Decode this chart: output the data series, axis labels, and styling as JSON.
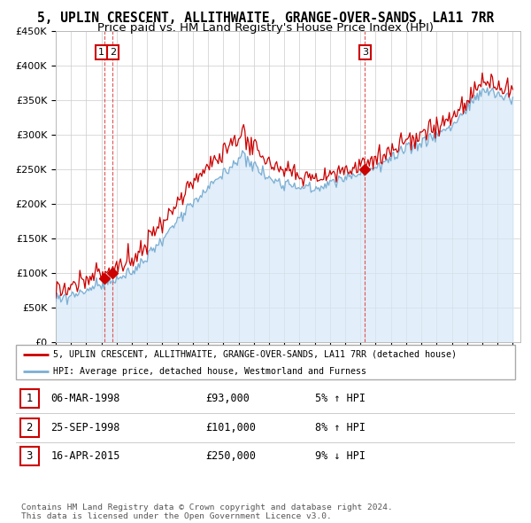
{
  "title": "5, UPLIN CRESCENT, ALLITHWAITE, GRANGE-OVER-SANDS, LA11 7RR",
  "subtitle": "Price paid vs. HM Land Registry's House Price Index (HPI)",
  "ylim": [
    0,
    450000
  ],
  "yticks": [
    0,
    50000,
    100000,
    150000,
    200000,
    250000,
    300000,
    350000,
    400000,
    450000
  ],
  "ytick_labels": [
    "£0",
    "£50K",
    "£100K",
    "£150K",
    "£200K",
    "£250K",
    "£300K",
    "£350K",
    "£400K",
    "£450K"
  ],
  "sale_dates_num": [
    1998.17,
    1998.73,
    2015.29
  ],
  "sale_prices": [
    93000,
    101000,
    250000
  ],
  "sale_labels": [
    "1",
    "2",
    "3"
  ],
  "hpi_line_color": "#7bafd4",
  "hpi_fill_color": "#d6e8f7",
  "price_line_color": "#cc0000",
  "marker_color": "#cc0000",
  "label_box_color": "#cc0000",
  "background_color": "#ffffff",
  "grid_color": "#cccccc",
  "legend_line1": "5, UPLIN CRESCENT, ALLITHWAITE, GRANGE-OVER-SANDS, LA11 7RR (detached house)",
  "legend_line2": "HPI: Average price, detached house, Westmorland and Furness",
  "table_rows": [
    [
      "1",
      "06-MAR-1998",
      "£93,000",
      "5% ↑ HPI"
    ],
    [
      "2",
      "25-SEP-1998",
      "£101,000",
      "8% ↑ HPI"
    ],
    [
      "3",
      "16-APR-2015",
      "£250,000",
      "9% ↓ HPI"
    ]
  ],
  "footer_text": "Contains HM Land Registry data © Crown copyright and database right 2024.\nThis data is licensed under the Open Government Licence v3.0.",
  "title_fontsize": 10.5,
  "subtitle_fontsize": 9.5
}
